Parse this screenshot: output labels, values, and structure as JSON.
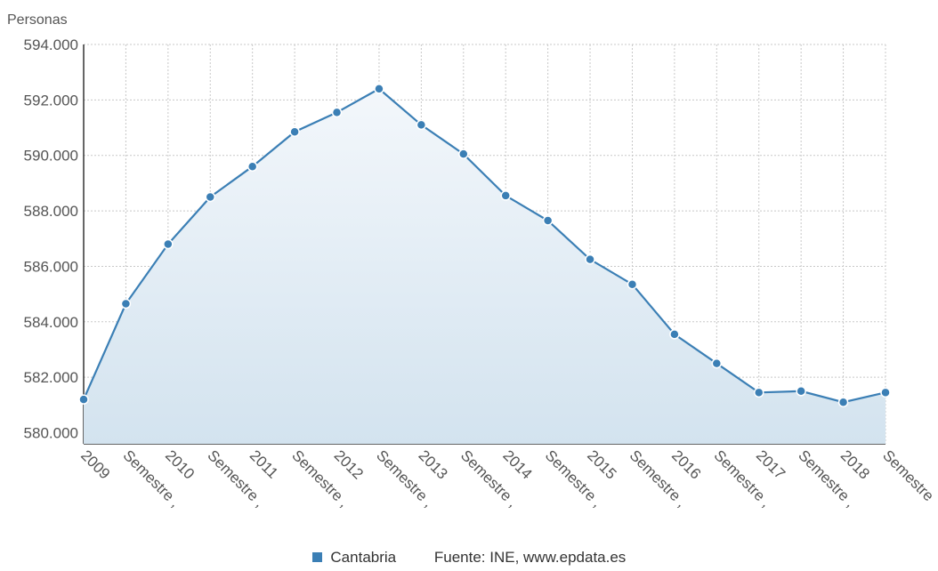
{
  "chart_data": {
    "type": "area",
    "ylabel": "Personas",
    "categories": [
      "2009",
      "Semestre ,",
      "2010",
      "Semestre ,",
      "2011",
      "Semestre ,",
      "2012",
      "Semestre ,",
      "2013",
      "Semestre ,",
      "2014",
      "Semestre ,",
      "2015",
      "Semestre ,",
      "2016",
      "Semestre ,",
      "2017",
      "Semestre ,",
      "2018",
      "Semestre"
    ],
    "series": [
      {
        "name": "Cantabria",
        "values": [
          581200,
          584650,
          586800,
          588500,
          589600,
          590850,
          591550,
          592400,
          591100,
          590050,
          588550,
          587650,
          586250,
          585350,
          583550,
          582500,
          581450,
          581500,
          581100,
          581450
        ]
      }
    ],
    "ylim": [
      579600,
      594000
    ],
    "yticks": [
      "580.000",
      "582.000",
      "584.000",
      "586.000",
      "588.000",
      "590.000",
      "592.000",
      "594.000"
    ],
    "ytick_values": [
      580000,
      582000,
      584000,
      586000,
      588000,
      590000,
      592000,
      594000
    ],
    "grid": true,
    "colors": {
      "line": "#3b7fb5",
      "point": "#3b7fb5",
      "fill_top": "#f3f7fb",
      "fill_bottom": "#d3e3ef"
    }
  },
  "legend": {
    "series_label": "Cantabria",
    "source": "Fuente: INE, www.epdata.es"
  }
}
